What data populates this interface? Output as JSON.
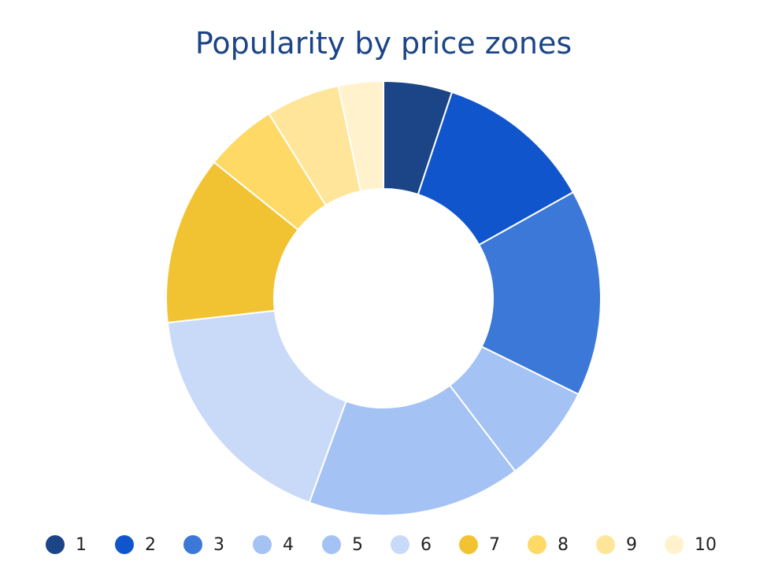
{
  "chart_data": {
    "type": "pie",
    "title": "Popularity by price zones",
    "hole": true,
    "categories": [
      "1",
      "2",
      "3",
      "4",
      "5",
      "6",
      "7",
      "8",
      "9",
      "10"
    ],
    "values": [
      5.2,
      12.0,
      15.7,
      7.5,
      16.2,
      18.0,
      12.8,
      5.5,
      5.6,
      3.4
    ],
    "colors": [
      "#1c4587",
      "#1155cc",
      "#3c78d8",
      "#a4c2f4",
      "#a4c2f4",
      "#c9daf8",
      "#f1c232",
      "#ffd966",
      "#ffe599",
      "#fff2cc"
    ],
    "legend_position": "bottom"
  }
}
